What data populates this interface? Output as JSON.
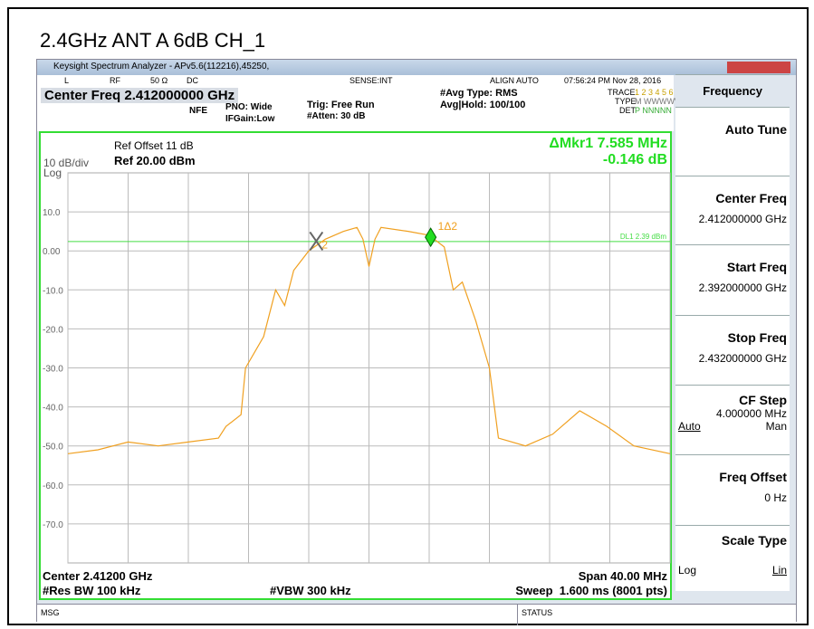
{
  "page_title": "2.4GHz ANT A 6dB CH_1",
  "window_title": "Keysight Spectrum Analyzer - APv5.6(112216),45250,",
  "status_row": [
    "L",
    "RF",
    "50 Ω",
    "DC",
    "SENSE:INT",
    "ALIGN AUTO",
    "07:56:24 PM Nov 28, 2016"
  ],
  "center_freq": "Center Freq 2.412000000 GHz",
  "settings": [
    "NFE",
    "PNO: Wide",
    "IFGain:Low",
    "Trig: Free Run",
    "#Atten: 30 dB",
    "#Avg Type: RMS",
    "Avg|Hold: 100/100"
  ],
  "trace_info": {
    "trace": "TRACE",
    "trace_nums": "1 2 3 4 5 6",
    "type": "TYPE",
    "type_val": "M WWWWWW",
    "det": "DET",
    "det_val": "P NNNNN"
  },
  "plot": {
    "ref_offset": "Ref Offset 11 dB",
    "scale": "10 dB/div",
    "log": "Log",
    "ref_level": "Ref 20.00 dBm",
    "marker_readout": [
      "ΔMkr1 7.585 MHz",
      "-0.146 dB"
    ],
    "ylim": [
      -80,
      20
    ],
    "yticks": [
      {
        "value": 10,
        "label": "10.0"
      },
      {
        "value": 0,
        "label": "0.00"
      },
      {
        "value": -10,
        "label": "-10.0"
      },
      {
        "value": -20,
        "label": "-20.0"
      },
      {
        "value": -30,
        "label": "-30.0"
      },
      {
        "value": -40,
        "label": "-40.0"
      },
      {
        "value": -50,
        "label": "-50.0"
      },
      {
        "value": -60,
        "label": "-60.0"
      },
      {
        "value": -70,
        "label": "-70.0"
      }
    ],
    "xlim": [
      2.392,
      2.432
    ],
    "xticks": [
      2.392,
      2.396,
      2.4,
      2.404,
      2.408,
      2.412,
      2.416,
      2.42,
      2.424,
      2.428,
      2.432
    ],
    "display_line": {
      "label": "DL1 2.39 dBm",
      "value": 2.39
    },
    "markers": [
      {
        "label": "1Δ2",
        "x": 2.4161,
        "y": 3.5
      },
      {
        "label": "2",
        "x": 2.4085,
        "y": 2.5
      }
    ],
    "trace": {
      "color": "#f0a020",
      "x": [
        2.392,
        2.394,
        2.396,
        2.398,
        2.4,
        2.402,
        2.4025,
        2.4035,
        2.4038,
        2.405,
        2.4058,
        2.4064,
        2.407,
        2.408,
        2.4091,
        2.4103,
        2.4112,
        2.4116,
        2.412,
        2.4124,
        2.4128,
        2.4146,
        2.416,
        2.417,
        2.4176,
        2.4182,
        2.4191,
        2.42,
        2.4206,
        2.4224,
        2.4242,
        2.426,
        2.4278,
        2.4296,
        2.432
      ],
      "values": [
        -52,
        -51,
        -49,
        -50,
        -49,
        -48,
        -45,
        -42,
        -30,
        -22,
        -10,
        -14,
        -5,
        0,
        3,
        5,
        6,
        3,
        -4,
        3,
        6,
        5,
        4,
        1,
        -10,
        -8,
        -18,
        -30,
        -48,
        -50,
        -47,
        -41,
        -45,
        -50,
        -52
      ]
    }
  },
  "footer": [
    "Center 2.41200 GHz",
    "Span 40.00 MHz",
    "#Res BW 100 kHz",
    "#VBW 300 kHz",
    "Sweep  1.600 ms (8001 pts)"
  ],
  "softkeys": [
    {
      "label": "Frequency"
    },
    {
      "label": "Auto Tune"
    },
    {
      "label": "Center Freq",
      "value": "2.412000000 GHz"
    },
    {
      "label": "Start Freq",
      "value": "2.392000000 GHz"
    },
    {
      "label": "Stop Freq",
      "value": "2.432000000 GHz"
    },
    {
      "label": "CF Step",
      "value": "4.000000 MHz",
      "options": [
        "Auto",
        "Man"
      ]
    },
    {
      "label": "Freq Offset",
      "value": "0 Hz"
    },
    {
      "label": "Scale Type",
      "options": [
        "Log",
        "Lin"
      ]
    }
  ],
  "status_bar": [
    "MSG",
    "STATUS"
  ]
}
